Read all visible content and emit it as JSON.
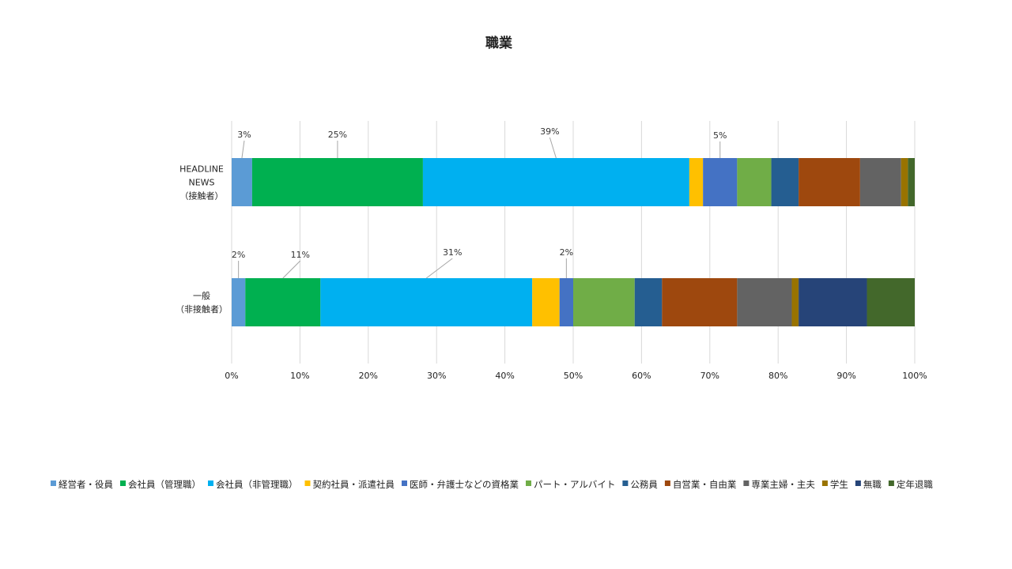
{
  "chart_data": {
    "type": "bar",
    "orientation": "horizontal",
    "stacked": "percent",
    "title": "職業",
    "categories": [
      [
        "HEADLINE",
        "NEWS",
        "（接触者）"
      ],
      [
        "一般",
        "（非接触者）"
      ]
    ],
    "xlim": [
      0,
      100
    ],
    "x_ticks": [
      "0%",
      "10%",
      "20%",
      "30%",
      "40%",
      "50%",
      "60%",
      "70%",
      "80%",
      "90%",
      "100%"
    ],
    "grid": true,
    "legend_position": "bottom",
    "series": [
      {
        "name": "経営者・役員",
        "color": "#5B9BD5",
        "values": [
          3,
          2
        ],
        "labels": [
          "3%",
          "2%"
        ]
      },
      {
        "name": "会社員（管理職）",
        "color": "#00B050",
        "values": [
          25,
          11
        ],
        "labels": [
          "25%",
          "11%"
        ]
      },
      {
        "name": "会社員（非管理職）",
        "color": "#00B0F0",
        "values": [
          39,
          31
        ],
        "labels": [
          "39%",
          "31%"
        ]
      },
      {
        "name": "契約社員・派遣社員",
        "color": "#FFC000",
        "values": [
          2,
          4
        ],
        "labels": [
          "",
          ""
        ]
      },
      {
        "name": "医師・弁護士などの資格業",
        "color": "#4472C4",
        "values": [
          5,
          2
        ],
        "labels": [
          "5%",
          "2%"
        ]
      },
      {
        "name": "パート・アルバイト",
        "color": "#70AD47",
        "values": [
          5,
          9
        ],
        "labels": [
          "",
          ""
        ]
      },
      {
        "name": "公務員",
        "color": "#255E91",
        "values": [
          4,
          4
        ],
        "labels": [
          "",
          ""
        ]
      },
      {
        "name": "自営業・自由業",
        "color": "#9E480E",
        "values": [
          9,
          11
        ],
        "labels": [
          "",
          ""
        ]
      },
      {
        "name": "専業主婦・主夫",
        "color": "#636363",
        "values": [
          6,
          8
        ],
        "labels": [
          "",
          ""
        ]
      },
      {
        "name": "学生",
        "color": "#997300",
        "values": [
          1,
          1
        ],
        "labels": [
          "",
          ""
        ]
      },
      {
        "name": "無職",
        "color": "#264478",
        "values": [
          0,
          10
        ],
        "labels": [
          "",
          ""
        ]
      },
      {
        "name": "定年退職",
        "color": "#43682B",
        "values": [
          1,
          7
        ],
        "labels": [
          "",
          ""
        ]
      }
    ]
  }
}
